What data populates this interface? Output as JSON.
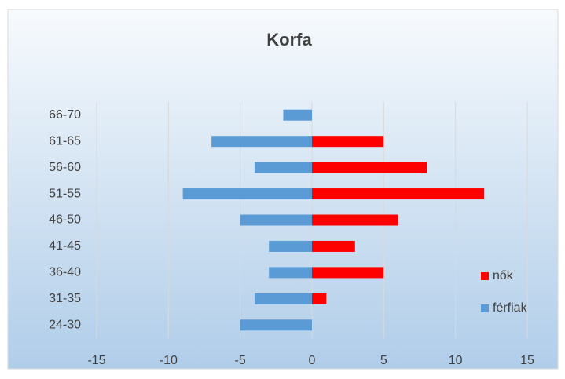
{
  "chart_data": {
    "type": "bar",
    "orientation": "horizontal",
    "title": "Korfa",
    "categories": [
      "24-30",
      "31-35",
      "36-40",
      "41-45",
      "46-50",
      "51-55",
      "56-60",
      "61-65",
      "66-70"
    ],
    "series": [
      {
        "name": "nők",
        "color": "#ff0000",
        "values": [
          0,
          1,
          5,
          3,
          6,
          12,
          8,
          5,
          0
        ]
      },
      {
        "name": "férfiak",
        "color": "#5b9bd5",
        "values": [
          -5,
          -4,
          -3,
          -3,
          -5,
          -9,
          -4,
          -7,
          -2
        ]
      }
    ],
    "xlim": [
      -15,
      15
    ],
    "xticks": [
      -15,
      -10,
      -5,
      0,
      5,
      10,
      15
    ],
    "grid": true,
    "legend": "right"
  }
}
